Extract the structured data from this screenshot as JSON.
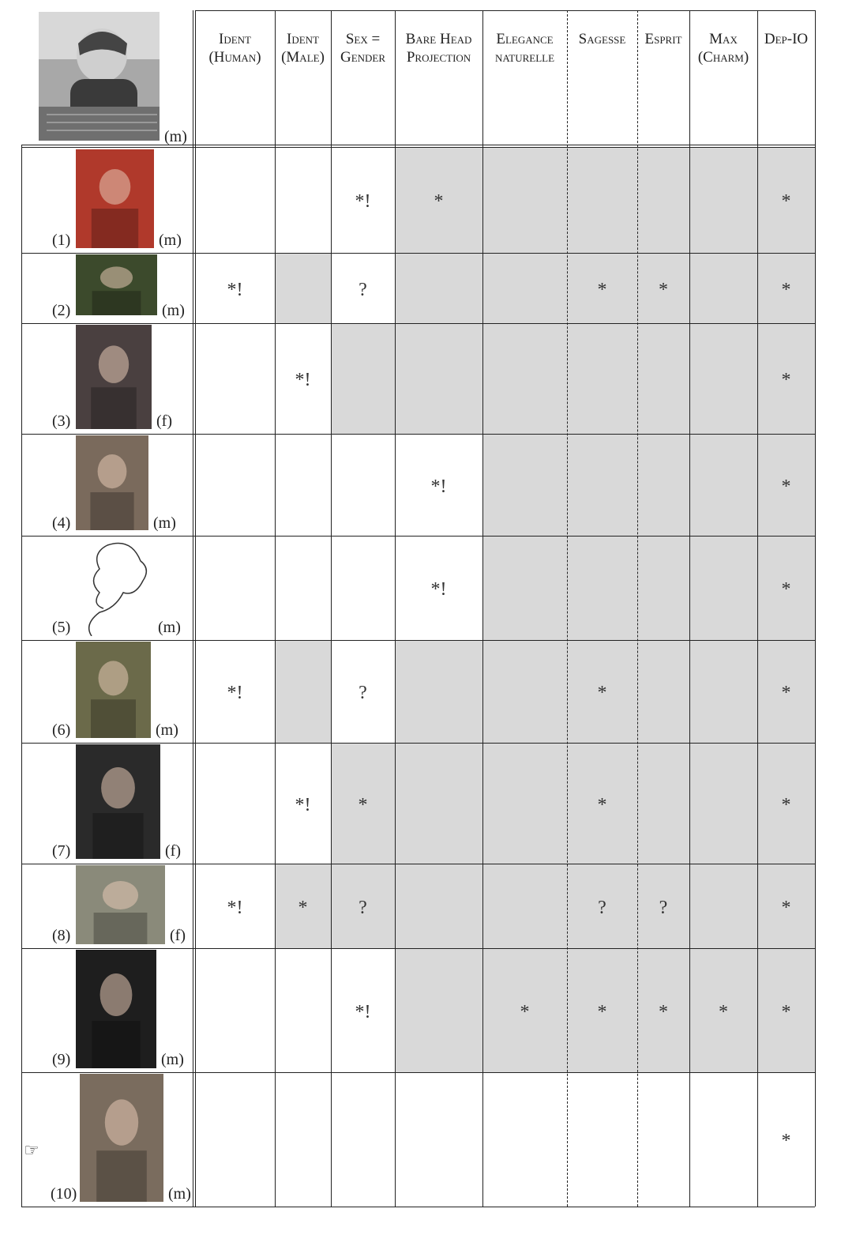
{
  "header": {
    "sex_label": "(m)",
    "columns": [
      {
        "key": "ident_human",
        "line1": "Ident",
        "line2": "(Human)"
      },
      {
        "key": "ident_male",
        "line1": "Ident",
        "line2": "(Male)"
      },
      {
        "key": "sex_gender",
        "line1": "Sex =",
        "line2": "Gender"
      },
      {
        "key": "bare_head",
        "line1": "Bare Head",
        "line2": "Projection"
      },
      {
        "key": "elegance",
        "line1": "Elegance",
        "line2": "naturelle"
      },
      {
        "key": "sagesse",
        "line1": "Sagesse",
        "line2": ""
      },
      {
        "key": "esprit",
        "line1": "Esprit",
        "line2": ""
      },
      {
        "key": "max_charm",
        "line1": "Max",
        "line2": "(Charm)"
      },
      {
        "key": "dep_io",
        "line1": "Dep-IO",
        "line2": ""
      }
    ]
  },
  "rows": [
    {
      "num": "(1)",
      "sex": "(m)",
      "pointer": "",
      "marks": [
        "",
        "",
        "*!",
        "*",
        "",
        "",
        "",
        "",
        "*"
      ]
    },
    {
      "num": "(2)",
      "sex": "(m)",
      "pointer": "",
      "marks": [
        "*!",
        "",
        "?",
        "",
        "",
        "*",
        "*",
        "",
        "*"
      ]
    },
    {
      "num": "(3)",
      "sex": "(f)",
      "pointer": "",
      "marks": [
        "",
        "*!",
        "",
        "",
        "",
        "",
        "",
        "",
        "*"
      ]
    },
    {
      "num": "(4)",
      "sex": "(m)",
      "pointer": "",
      "marks": [
        "",
        "",
        "",
        "*!",
        "",
        "",
        "",
        "",
        "*"
      ]
    },
    {
      "num": "(5)",
      "sex": "(m)",
      "pointer": "",
      "marks": [
        "",
        "",
        "",
        "*!",
        "",
        "",
        "",
        "",
        "*"
      ]
    },
    {
      "num": "(6)",
      "sex": "(m)",
      "pointer": "",
      "marks": [
        "*!",
        "",
        "?",
        "",
        "",
        "*",
        "",
        "",
        "*"
      ]
    },
    {
      "num": "(7)",
      "sex": "(f)",
      "pointer": "",
      "marks": [
        "",
        "*!",
        "*",
        "",
        "",
        "*",
        "",
        "",
        "*"
      ]
    },
    {
      "num": "(8)",
      "sex": "(f)",
      "pointer": "",
      "marks": [
        "*!",
        "*",
        "?",
        "",
        "",
        "?",
        "?",
        "",
        "*"
      ]
    },
    {
      "num": "(9)",
      "sex": "(m)",
      "pointer": "",
      "marks": [
        "",
        "",
        "*!",
        "",
        "*",
        "*",
        "*",
        "*",
        "*"
      ]
    },
    {
      "num": "(10)",
      "sex": "(m)",
      "pointer": "☞",
      "marks": [
        "",
        "",
        "",
        "",
        "",
        "",
        "",
        "",
        "*"
      ]
    }
  ],
  "photos": {
    "header": "baby-photo",
    "rows": [
      "protester-photo",
      "monkey-photo",
      "bride-costume-photo",
      "grey-haired-man-photo",
      "wig-sketch",
      "penguin-photo",
      "dark-costume-photo",
      "cat-photo",
      "masked-performer-photo",
      "man-portrait-photo"
    ]
  },
  "colors": {
    "shade": "#d9d9d9",
    "line": "#222222"
  }
}
